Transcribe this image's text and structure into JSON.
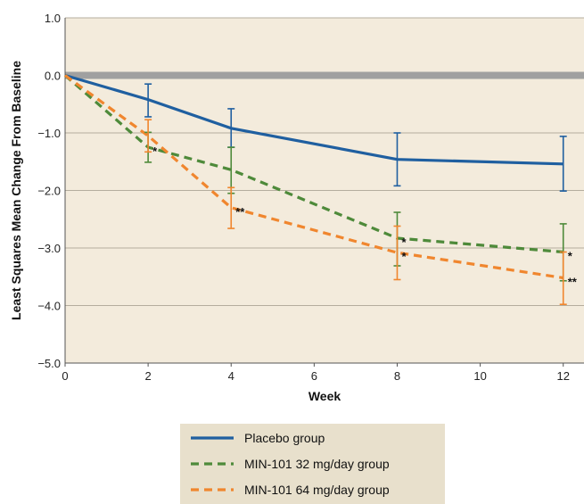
{
  "chart_data": {
    "type": "line",
    "title": "",
    "xlabel": "Week",
    "ylabel": "Least Squares Mean Change From Baseline",
    "xlim": [
      0,
      12.5
    ],
    "ylim": [
      -5.0,
      1.0
    ],
    "x_ticks": [
      "0",
      "2",
      "4",
      "6",
      "8",
      "10",
      "12"
    ],
    "y_ticks": [
      "1.0",
      "0.0",
      "−1.0",
      "−2.0",
      "−3.0",
      "−4.0",
      "−5.0"
    ],
    "grid": "horizontal",
    "background": "#f3ebdc",
    "zero_band_color": "#a0a0a0",
    "legend_position": "bottom-center",
    "legend_background": "#e8e0cc",
    "series": [
      {
        "name": "Placebo group",
        "color": "#1f5fa0",
        "style": "solid",
        "x": [
          0,
          2,
          4,
          8,
          12
        ],
        "y": [
          0.0,
          -0.42,
          -0.92,
          -1.46,
          -1.54
        ],
        "err_low": [
          null,
          -0.72,
          -1.25,
          -1.92,
          -2.01
        ],
        "err_high": [
          null,
          -0.15,
          -0.58,
          -1.0,
          -1.06
        ]
      },
      {
        "name": "MIN-101 32 mg/day group",
        "color": "#4e8a3a",
        "style": "dashed",
        "x": [
          0,
          2,
          4,
          8,
          12
        ],
        "y": [
          0.0,
          -1.25,
          -1.64,
          -2.83,
          -3.07
        ],
        "err_low": [
          null,
          -1.51,
          -2.05,
          -3.31,
          -3.57
        ],
        "err_high": [
          null,
          -0.99,
          -1.25,
          -2.38,
          -2.58
        ]
      },
      {
        "name": "MIN-101 64 mg/day group",
        "color": "#f0862e",
        "style": "dashed",
        "x": [
          0,
          2,
          4,
          8,
          12
        ],
        "y": [
          0.0,
          -1.05,
          -2.3,
          -3.08,
          -3.52
        ],
        "err_low": [
          null,
          -1.33,
          -2.66,
          -3.55,
          -3.98
        ],
        "err_high": [
          null,
          -0.77,
          -1.95,
          -2.62,
          -3.07
        ]
      }
    ],
    "annotations": [
      {
        "text": "*",
        "x": 2,
        "y": -1.25
      },
      {
        "text": "**",
        "x": 4,
        "y": -2.3
      },
      {
        "text": "*",
        "x": 8,
        "y": -2.83
      },
      {
        "text": "*",
        "x": 8,
        "y": -3.08
      },
      {
        "text": "*",
        "x": 12,
        "y": -3.07
      },
      {
        "text": "**",
        "x": 12,
        "y": -3.52
      }
    ]
  }
}
